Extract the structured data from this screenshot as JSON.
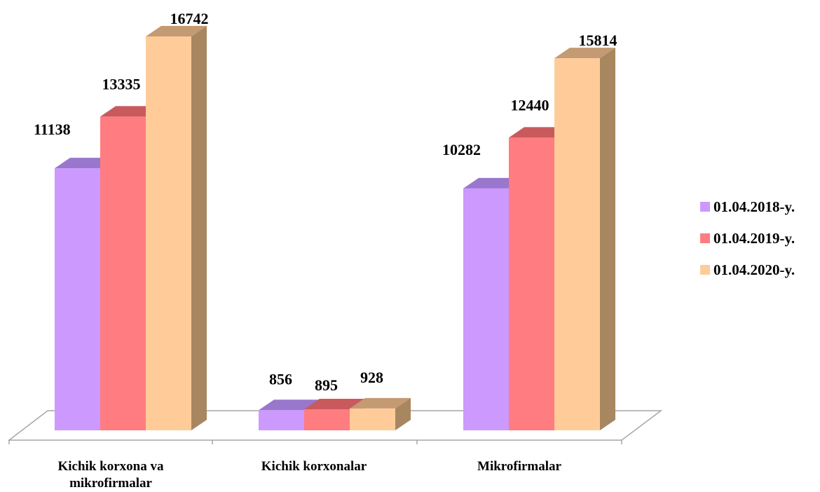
{
  "chart_data": {
    "type": "bar",
    "title": "",
    "xlabel": "",
    "ylabel": "",
    "ylim": [
      0,
      16742
    ],
    "grid": false,
    "legend_position": "right",
    "categories": [
      [
        "Kichik korxona va",
        "mikrofirmalar"
      ],
      [
        "Kichik korxonalar"
      ],
      [
        "Mikrofirmalar"
      ]
    ],
    "series": [
      {
        "name": "01.04.2018-y.",
        "values": [
          11138,
          856,
          10282
        ]
      },
      {
        "name": "01.04.2019-y.",
        "values": [
          13335,
          895,
          12440
        ]
      },
      {
        "name": "01.04.2020-y.",
        "values": [
          16742,
          928,
          15814
        ]
      }
    ]
  },
  "colors": {
    "series": [
      {
        "front": "#cc99ff",
        "top": "#9977cc",
        "side": "#9c7ac8"
      },
      {
        "front": "#ff7c80",
        "top": "#c85a5e",
        "side": "#c25b5e"
      },
      {
        "front": "#ffcc99",
        "top": "#c49a72",
        "side": "#a88660"
      }
    ],
    "floor": "#a6a6a6"
  }
}
